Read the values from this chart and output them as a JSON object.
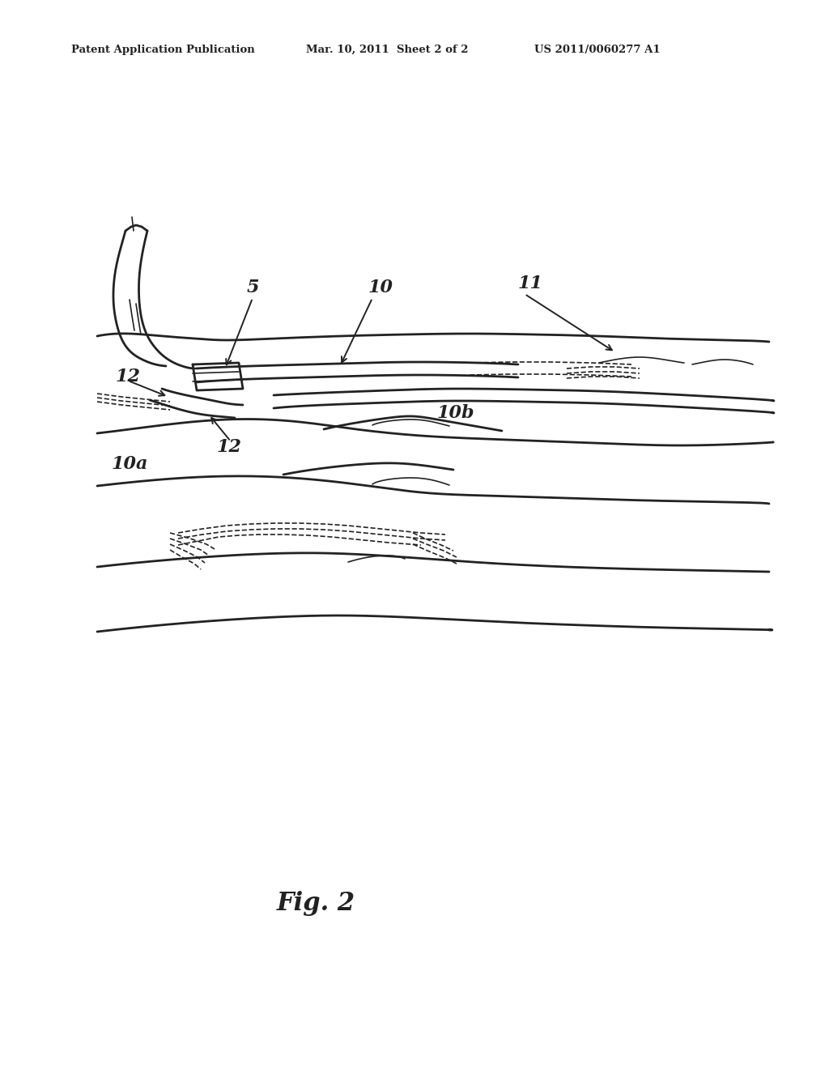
{
  "title": "Fig. 2",
  "patent_left": "Patent Application Publication",
  "patent_middle": "Mar. 10, 2011  Sheet 2 of 2",
  "patent_right": "US 2011/0060277 A1",
  "bg_color": "#ffffff",
  "line_color": "#222222",
  "label_5": "5",
  "label_10": "10",
  "label_11": "11",
  "label_12a": "12",
  "label_12b": "12",
  "label_10a": "10a",
  "label_10b": "10b",
  "fig_label": "Fig. 2"
}
